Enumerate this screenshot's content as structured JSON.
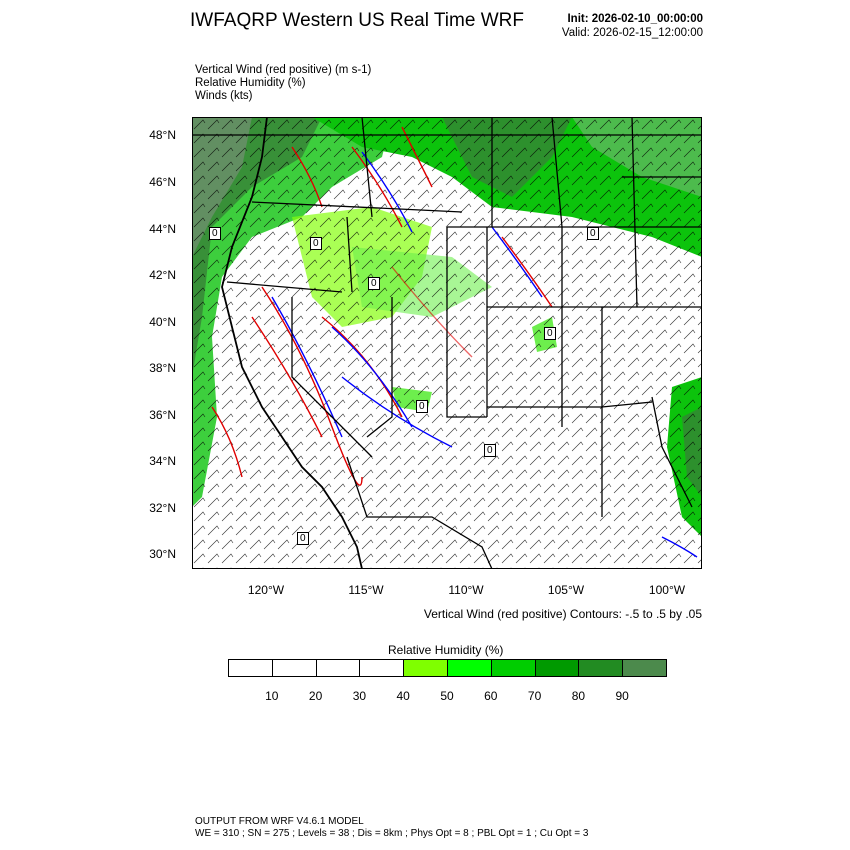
{
  "header": {
    "title": "IWFAQRP Western US Real Time WRF",
    "init": "Init: 2026-02-10_00:00:00",
    "valid": "Valid: 2026-02-15_12:00:00"
  },
  "fields": [
    "Vertical Wind (red positive)   (m s-1)",
    "Relative Humidity   (%)",
    "Winds   (kts)"
  ],
  "map": {
    "lat_labels": [
      "48°N",
      "46°N",
      "44°N",
      "42°N",
      "40°N",
      "38°N",
      "36°N",
      "34°N",
      "32°N",
      "30°N"
    ],
    "lon_labels": [
      "120°W",
      "115°W",
      "110°W",
      "105°W",
      "100°W"
    ],
    "contour_caption": "Vertical Wind (red positive) Contours: -.5 to .5 by .05",
    "contour_zero_label": "0"
  },
  "colorbar": {
    "title": "Relative Humidity   (%)",
    "labels": [
      "10",
      "20",
      "30",
      "40",
      "50",
      "60",
      "70",
      "80",
      "90"
    ],
    "colors": [
      "#ffffff",
      "#ffffff",
      "#ffffff",
      "#ffffff",
      "#7fff00",
      "#00ff00",
      "#00cd00",
      "#009a00",
      "#228b22",
      "#4c8a4c"
    ]
  },
  "footer": {
    "line1": "OUTPUT FROM WRF V4.6.1 MODEL",
    "line2": "WE = 310 ; SN = 275 ; Levels = 38 ; Dis = 8km ; Phys Opt = 8 ; PBL Opt = 1 ; Cu Opt = 3"
  },
  "colors": {
    "updraft": "#e00000",
    "downdraft": "#0000ff",
    "rh_high": "#2e8b2e",
    "rh_mid": "#3fd43f",
    "rh_low": "#7fff00",
    "terrain_gray": "#888888"
  }
}
